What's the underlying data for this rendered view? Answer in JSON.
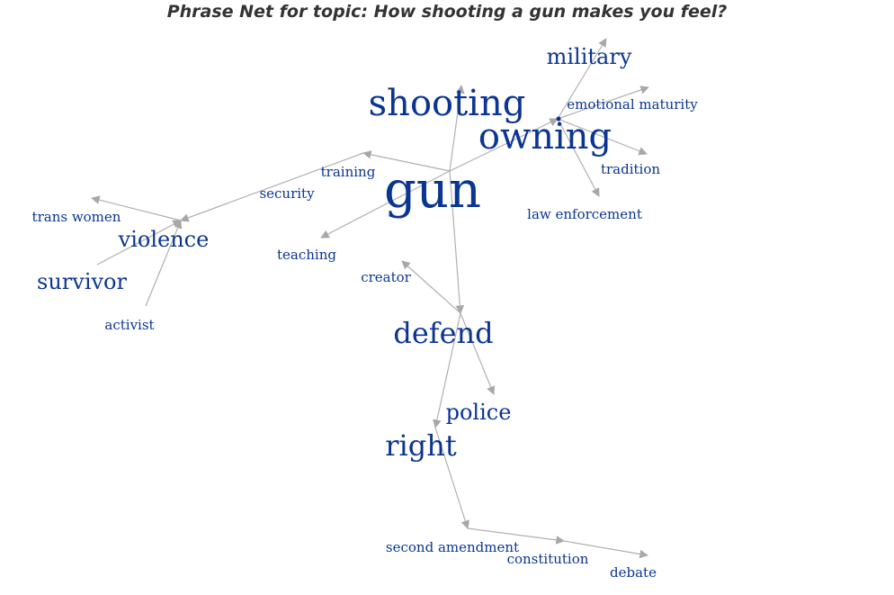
{
  "title": "Phrase Net for topic: How shooting a gun makes you feel?",
  "colors": {
    "word": "#0b3593",
    "edge": "#b0b0b0",
    "title": "#333333"
  },
  "words": {
    "gun": "gun",
    "shooting": "shooting",
    "owning": "owning",
    "military": "military",
    "emotional_maturity": "emotional maturity",
    "tradition": "tradition",
    "law_enforcement": "law enforcement",
    "training": "training",
    "security": "security",
    "teaching": "teaching",
    "trans_women": "trans women",
    "violence": "violence",
    "survivor": "survivor",
    "activist": "activist",
    "creator": "creator",
    "defend": "defend",
    "police": "police",
    "right": "right",
    "second_amendment": "second amendment",
    "constitution": "constitution",
    "debate": "debate"
  },
  "links": [
    [
      "gun",
      "shooting"
    ],
    [
      "gun",
      "training"
    ],
    [
      "gun",
      "teaching"
    ],
    [
      "gun",
      "owning"
    ],
    [
      "owning",
      "military"
    ],
    [
      "owning",
      "emotional_maturity"
    ],
    [
      "owning",
      "tradition"
    ],
    [
      "owning",
      "law_enforcement"
    ],
    [
      "training",
      "violence"
    ],
    [
      "violence",
      "trans_women"
    ],
    [
      "survivor",
      "violence"
    ],
    [
      "activist",
      "violence"
    ],
    [
      "gun",
      "defend"
    ],
    [
      "defend",
      "creator"
    ],
    [
      "defend",
      "police"
    ],
    [
      "defend",
      "right"
    ],
    [
      "right",
      "second_amendment"
    ],
    [
      "second_amendment",
      "constitution"
    ],
    [
      "constitution",
      "debate"
    ]
  ]
}
